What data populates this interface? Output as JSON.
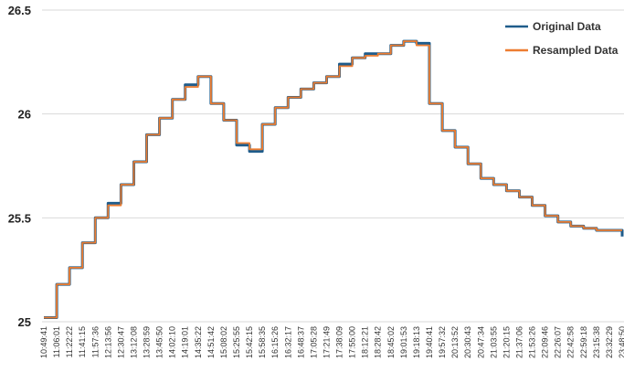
{
  "chart_data": {
    "type": "line",
    "title": "",
    "xlabel": "",
    "ylabel": "",
    "ylim": [
      25,
      26.5
    ],
    "yticks": [
      25,
      25.5,
      26,
      26.5
    ],
    "ytick_labels": [
      "25",
      "25.5",
      "26",
      "26.5"
    ],
    "grid": true,
    "legend_position": "top-right",
    "x": [
      "10:49:41",
      "11:06:01",
      "11:22:22",
      "11:41:15",
      "11:57:36",
      "12:13:56",
      "12:30:47",
      "13:12:08",
      "13:28:59",
      "13:45:50",
      "14:02:10",
      "14:19:01",
      "14:35:22",
      "14:51:42",
      "15:08:02",
      "15:25:55",
      "15:42:15",
      "15:58:35",
      "16:15:26",
      "16:32:17",
      "16:48:37",
      "17:05:28",
      "17:21:49",
      "17:38:09",
      "17:55:00",
      "18:12:21",
      "18:28:42",
      "18:45:02",
      "19:01:53",
      "19:18:13",
      "19:40:41",
      "19:57:32",
      "20:13:52",
      "20:30:43",
      "20:47:34",
      "21:03:55",
      "21:20:15",
      "21:37:06",
      "21:53:26",
      "22:09:46",
      "22:26:07",
      "22:42:58",
      "22:59:18",
      "23:15:38",
      "23:32:29",
      "23:48:50"
    ],
    "series": [
      {
        "name": "Original Data",
        "color": "#1f5c8b",
        "values": [
          25.02,
          25.18,
          25.26,
          25.38,
          25.5,
          25.57,
          25.66,
          25.77,
          25.9,
          25.98,
          26.07,
          26.14,
          26.18,
          26.05,
          25.97,
          25.85,
          25.82,
          25.95,
          26.03,
          26.08,
          26.12,
          26.15,
          26.18,
          26.24,
          26.27,
          26.29,
          26.29,
          26.33,
          26.35,
          26.34,
          26.05,
          25.92,
          25.84,
          25.76,
          25.69,
          25.66,
          25.63,
          25.6,
          25.56,
          25.51,
          25.48,
          25.46,
          25.45,
          25.44,
          25.44,
          25.41
        ]
      },
      {
        "name": "Resampled Data",
        "color": "#ed7d31",
        "values": [
          25.02,
          25.18,
          25.26,
          25.38,
          25.5,
          25.56,
          25.66,
          25.77,
          25.9,
          25.98,
          26.07,
          26.13,
          26.18,
          26.05,
          25.97,
          25.86,
          25.83,
          25.95,
          26.03,
          26.08,
          26.12,
          26.15,
          26.18,
          26.23,
          26.27,
          26.28,
          26.29,
          26.33,
          26.35,
          26.33,
          26.05,
          25.92,
          25.84,
          25.76,
          25.69,
          25.66,
          25.63,
          25.6,
          25.56,
          25.51,
          25.48,
          25.46,
          25.45,
          25.44,
          25.44,
          25.44
        ]
      }
    ]
  }
}
